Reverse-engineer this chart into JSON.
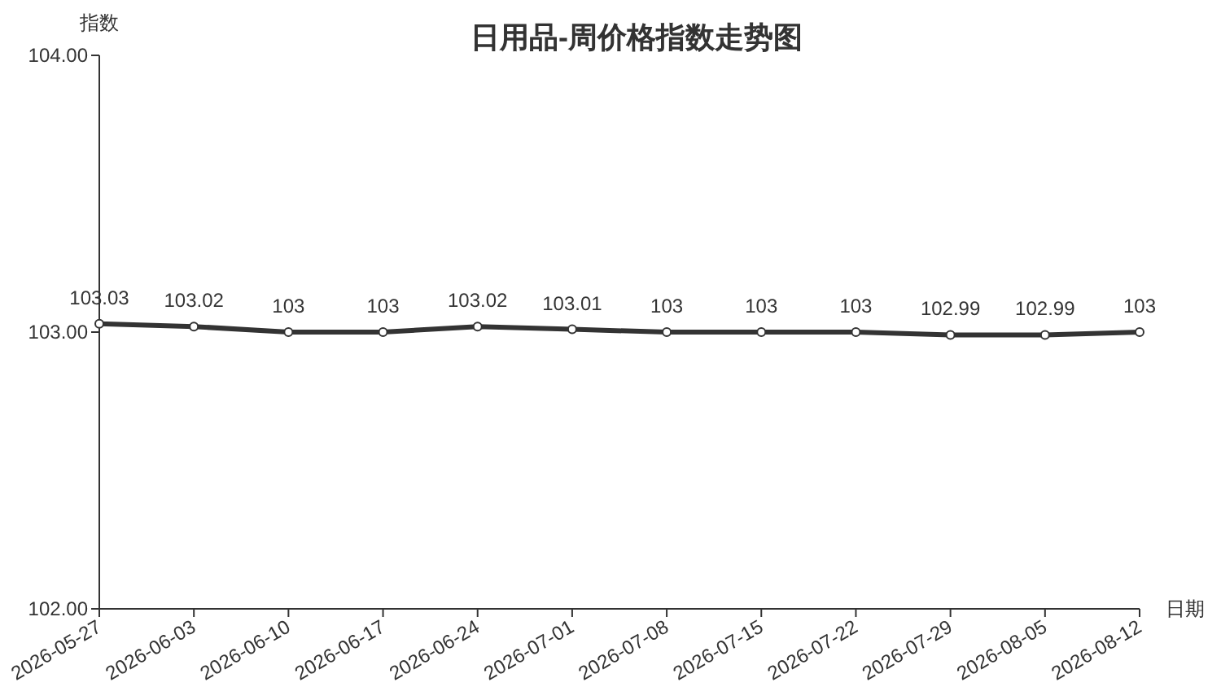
{
  "chart_data": {
    "type": "line",
    "title": "日用品-周价格指数走势图",
    "xlabel": "日期",
    "ylabel": "指数",
    "categories": [
      "2026-05-27",
      "2026-06-03",
      "2026-06-10",
      "2026-06-17",
      "2026-06-24",
      "2026-07-01",
      "2026-07-08",
      "2026-07-15",
      "2026-07-22",
      "2026-07-29",
      "2026-08-05",
      "2026-08-12"
    ],
    "values": [
      103.03,
      103.02,
      103,
      103,
      103.02,
      103.01,
      103,
      103,
      103,
      102.99,
      102.99,
      103
    ],
    "color": "#333333",
    "marker": "circle",
    "data_labels": true,
    "ylim": [
      102,
      104
    ],
    "yticks": [
      {
        "value": 102,
        "label": "102.00"
      },
      {
        "value": 103,
        "label": "103.00"
      },
      {
        "value": 104,
        "label": "104.00"
      }
    ]
  }
}
